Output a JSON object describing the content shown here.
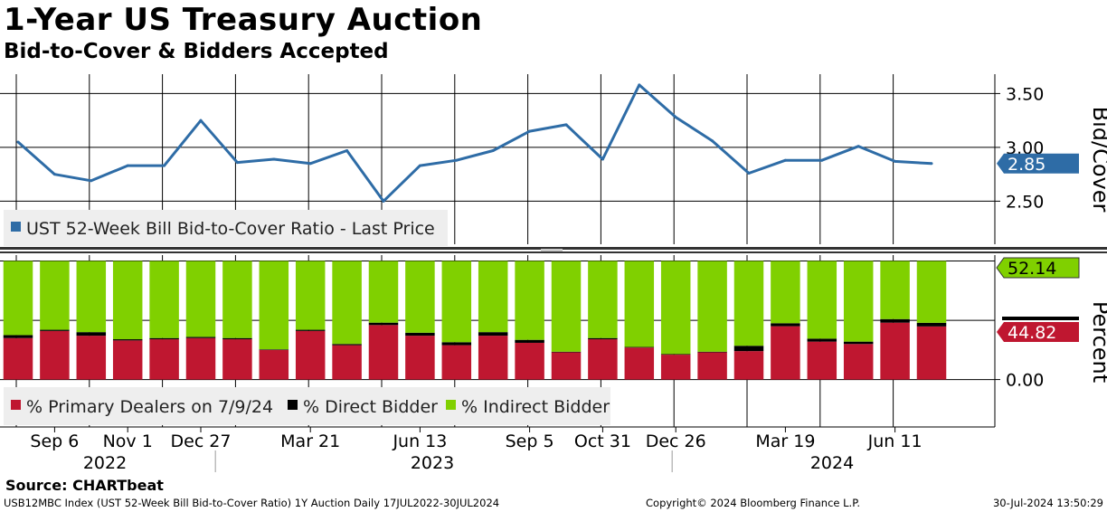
{
  "title": "1-Year US Treasury Auction",
  "subtitle": "Bid-to-Cover & Bidders Accepted",
  "source": "Source: CHARTbeat",
  "footer": {
    "left": "USB12MBC Index (UST 52-Week Bill Bid-to-Cover Ratio) 1Y Auction  Daily 17JUL2022-30JUL2024",
    "center": "Copyright© 2024 Bloomberg Finance L.P.",
    "right": "30-Jul-2024 13:50:29"
  },
  "colors": {
    "line": "#2e6ca6",
    "primary": "#bf1730",
    "direct": "#000000",
    "indirect": "#80d000",
    "legend_bg": "#eeeeee",
    "divider": "#333333"
  },
  "chart_data": {
    "type": "line+stacked-bar",
    "x_tick_labels": [
      "Sep 6",
      "Nov 1",
      "Dec 27",
      "Mar 21",
      "Jun 13",
      "Sep 5",
      "Oct 31",
      "Dec 26",
      "Mar 19",
      "Jun 11"
    ],
    "year_labels": [
      "2022",
      "2023",
      "2024"
    ],
    "top_panel": {
      "legend": "UST 52-Week Bill Bid-to-Cover Ratio - Last Price",
      "axis_title": "Bid/Cover",
      "ticks": [
        "3.50",
        "3.00",
        "2.50"
      ],
      "ylim": [
        2.1,
        3.68
      ],
      "last_value_label": "2.85",
      "values": [
        3.05,
        2.75,
        2.69,
        2.83,
        2.83,
        3.25,
        2.86,
        2.89,
        2.85,
        2.97,
        2.5,
        2.83,
        2.88,
        2.97,
        3.15,
        3.21,
        2.89,
        3.58,
        3.28,
        3.06,
        2.76,
        2.88,
        2.88,
        3.01,
        2.87,
        2.85
      ]
    },
    "bottom_panel": {
      "axis_title": "Percent",
      "ticks": [
        "0.00"
      ],
      "ylim": [
        -40,
        105
      ],
      "label_indirect": "52.14",
      "label_primary": "44.82",
      "legend": [
        "% Primary Dealers on 7/9/24",
        "% Direct Bidder",
        "% Indirect Bidder"
      ],
      "bars": [
        {
          "primary": 35,
          "direct": 2.5,
          "indirect": 62.5
        },
        {
          "primary": 41,
          "direct": 1,
          "indirect": 58
        },
        {
          "primary": 37,
          "direct": 3,
          "indirect": 60
        },
        {
          "primary": 33,
          "direct": 1,
          "indirect": 66
        },
        {
          "primary": 34,
          "direct": 1,
          "indirect": 65
        },
        {
          "primary": 35,
          "direct": 1,
          "indirect": 64
        },
        {
          "primary": 34,
          "direct": 1,
          "indirect": 65
        },
        {
          "primary": 25,
          "direct": 0.5,
          "indirect": 74.5
        },
        {
          "primary": 41,
          "direct": 1,
          "indirect": 58
        },
        {
          "primary": 29,
          "direct": 1,
          "indirect": 70
        },
        {
          "primary": 46,
          "direct": 2,
          "indirect": 52
        },
        {
          "primary": 37,
          "direct": 2.5,
          "indirect": 60.5
        },
        {
          "primary": 29,
          "direct": 2.5,
          "indirect": 68.5
        },
        {
          "primary": 37,
          "direct": 3,
          "indirect": 60
        },
        {
          "primary": 31,
          "direct": 2.5,
          "indirect": 66.5
        },
        {
          "primary": 23,
          "direct": 0.5,
          "indirect": 76.5
        },
        {
          "primary": 34,
          "direct": 1,
          "indirect": 65
        },
        {
          "primary": 27,
          "direct": 0.5,
          "indirect": 72.5
        },
        {
          "primary": 21,
          "direct": 0.5,
          "indirect": 78.5
        },
        {
          "primary": 23,
          "direct": 0.5,
          "indirect": 76.5
        },
        {
          "primary": 24,
          "direct": 4.5,
          "indirect": 71.5
        },
        {
          "primary": 45,
          "direct": 2.5,
          "indirect": 52.5
        },
        {
          "primary": 32,
          "direct": 2.5,
          "indirect": 65.5
        },
        {
          "primary": 30,
          "direct": 2,
          "indirect": 68
        },
        {
          "primary": 48,
          "direct": 3,
          "indirect": 49
        },
        {
          "primary": 44.82,
          "direct": 3.04,
          "indirect": 52.14
        }
      ]
    }
  }
}
